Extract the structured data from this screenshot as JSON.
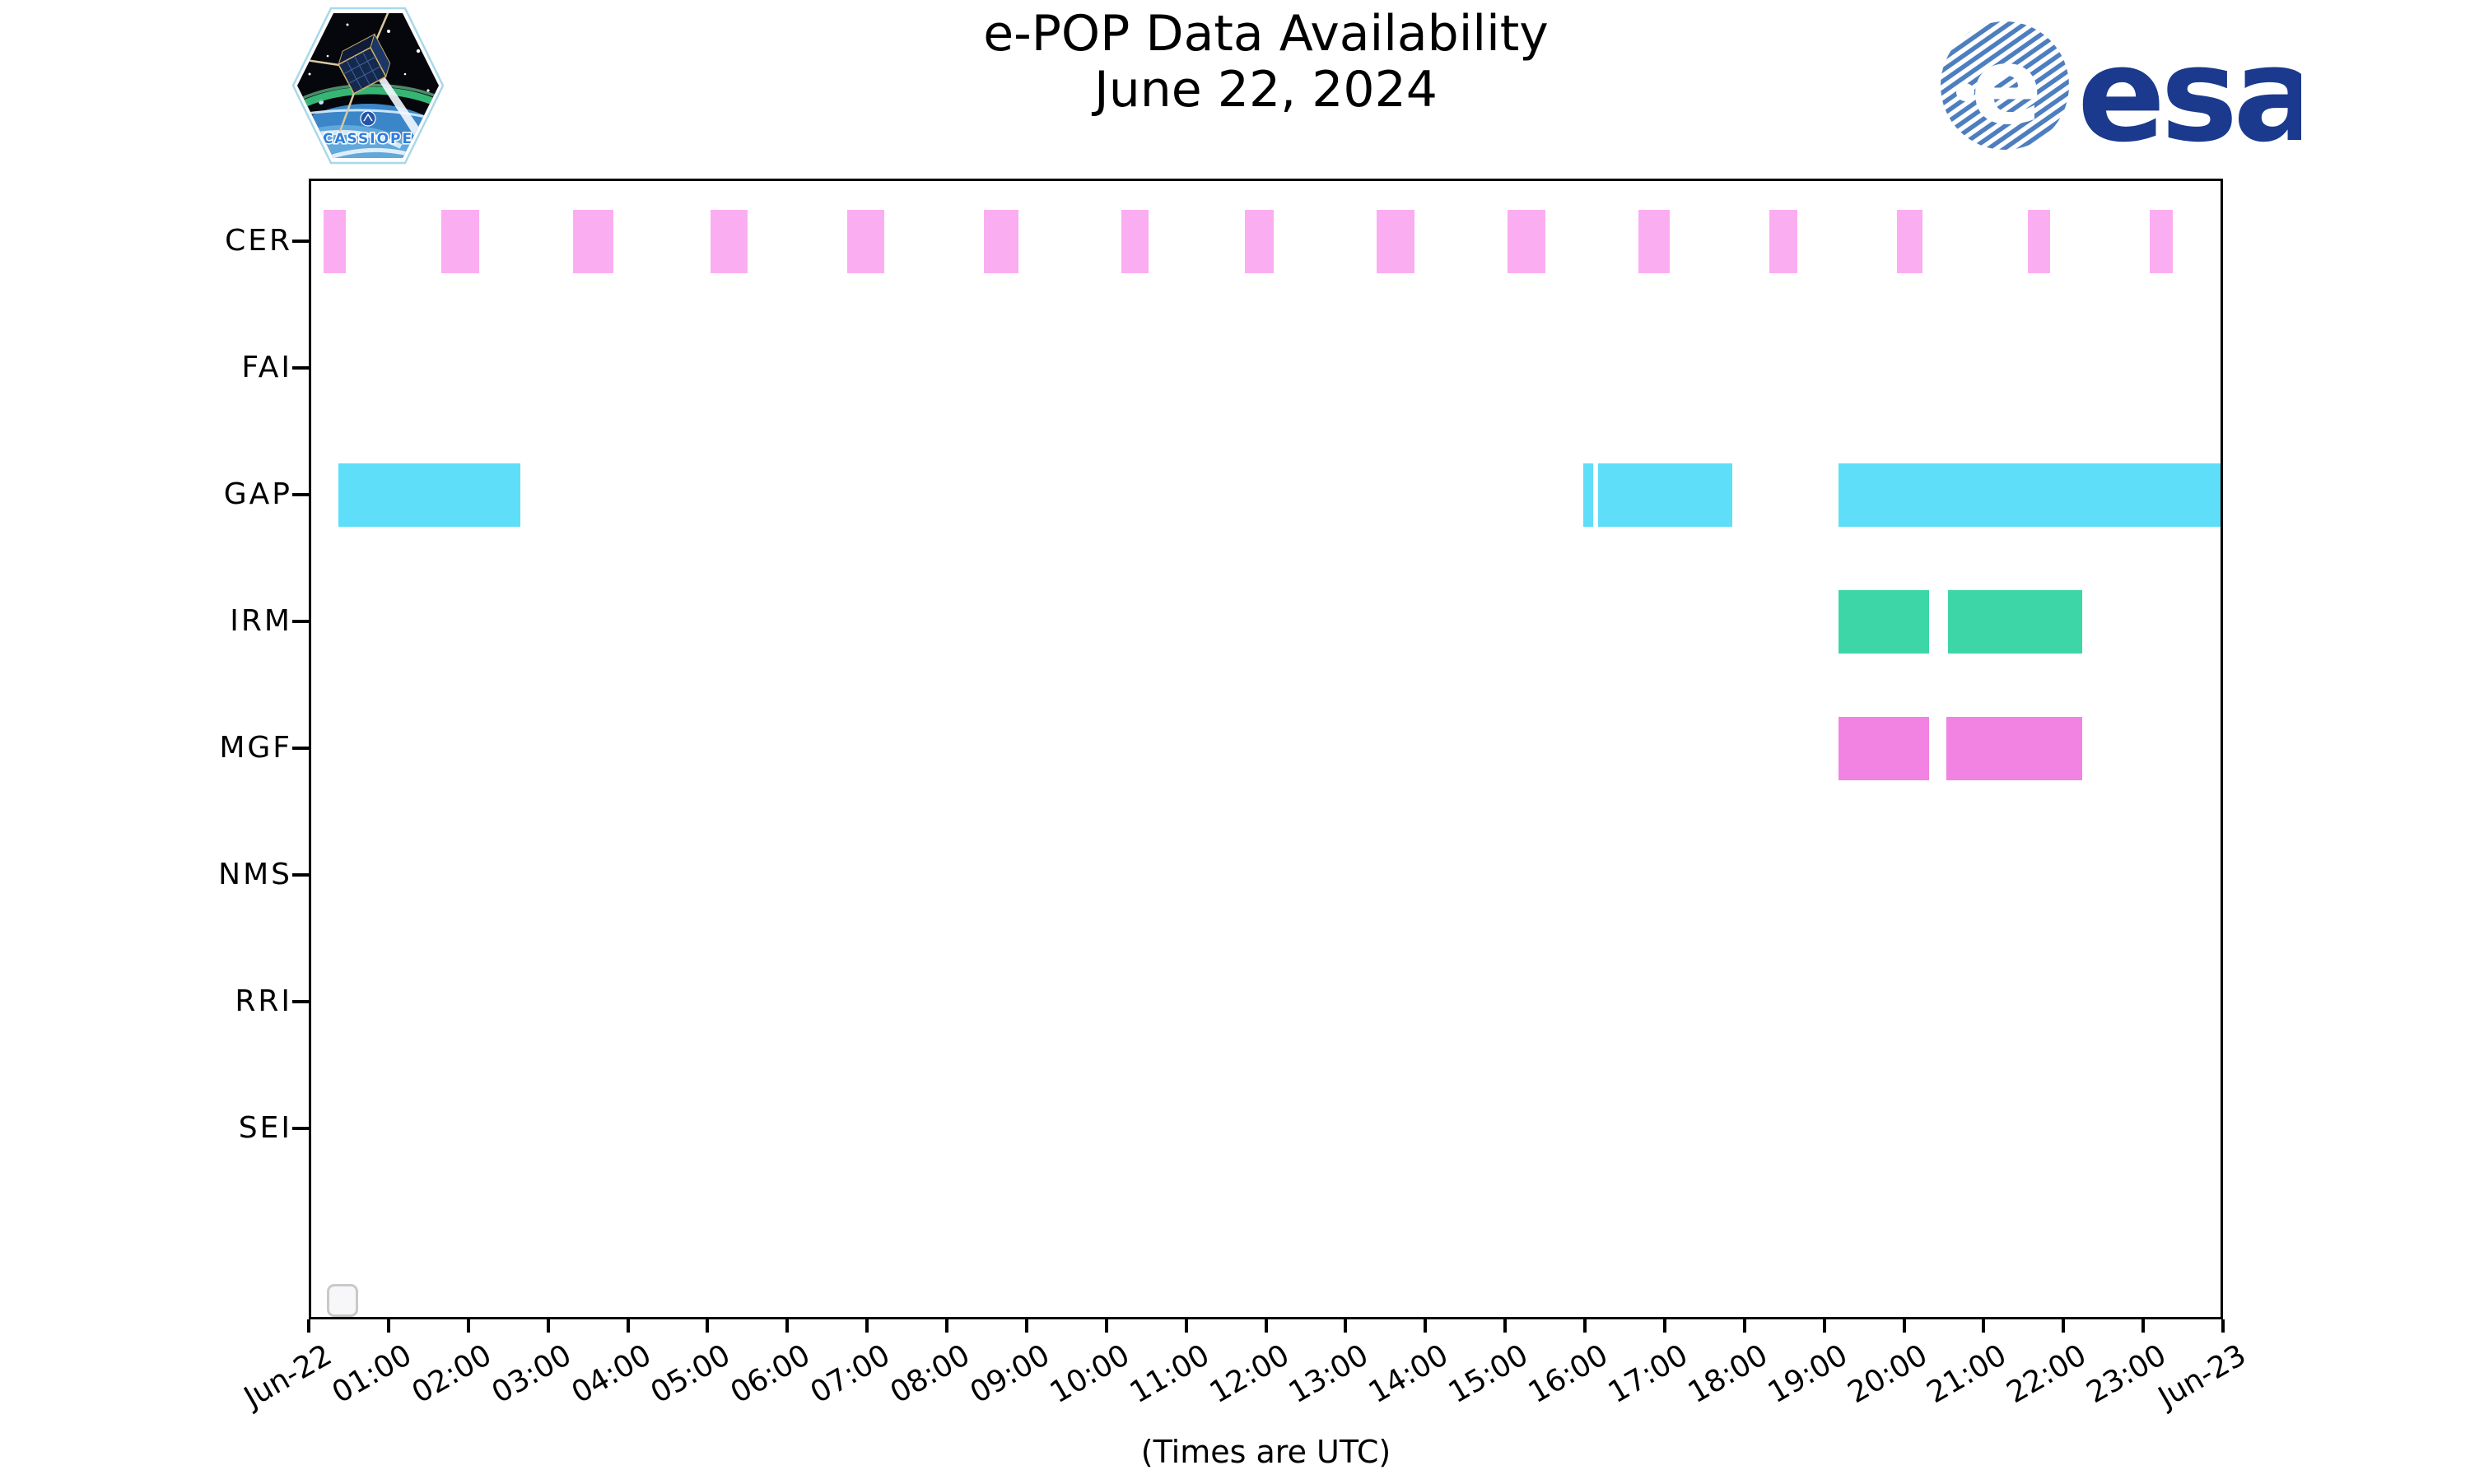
{
  "header": {
    "title_line1": "e-POP Data Availability",
    "title_line2": "June 22, 2024"
  },
  "logos": {
    "cassiope_patch_label": "CASSIOPE",
    "esa_wordmark": "esa",
    "esa_navy": "#1b3a8e",
    "esa_stripe_blue": "#4d7ec0"
  },
  "footer": {
    "caption": "(Times are UTC)"
  },
  "chart_data": {
    "type": "bar",
    "subtype": "gantt-availability-timeline",
    "title": "e-POP Data Availability June 22, 2024",
    "x_axis": {
      "caption": "(Times are UTC)",
      "span_hours": 24,
      "tick_labels": [
        "Jun-22",
        "01:00",
        "02:00",
        "03:00",
        "04:00",
        "05:00",
        "06:00",
        "07:00",
        "08:00",
        "09:00",
        "10:00",
        "11:00",
        "12:00",
        "13:00",
        "14:00",
        "15:00",
        "16:00",
        "17:00",
        "18:00",
        "19:00",
        "20:00",
        "21:00",
        "22:00",
        "23:00",
        "Jun-23"
      ]
    },
    "legend": {
      "visible": true,
      "entries": []
    },
    "rows": [
      {
        "label": "CER",
        "color": "#fbadf2",
        "segments": [
          [
            "00:11",
            "00:28"
          ],
          [
            "01:40",
            "02:08"
          ],
          [
            "03:19",
            "03:49"
          ],
          [
            "05:02",
            "05:30"
          ],
          [
            "06:45",
            "07:13"
          ],
          [
            "08:28",
            "08:54"
          ],
          [
            "10:11",
            "10:32"
          ],
          [
            "11:44",
            "12:06"
          ],
          [
            "13:23",
            "13:52"
          ],
          [
            "15:02",
            "15:30"
          ],
          [
            "16:40",
            "17:04"
          ],
          [
            "18:19",
            "18:40"
          ],
          [
            "19:55",
            "20:14"
          ],
          [
            "21:33",
            "21:50"
          ],
          [
            "23:05",
            "23:22"
          ]
        ]
      },
      {
        "label": "FAI",
        "color": "#fbadf2",
        "segments": []
      },
      {
        "label": "GAP",
        "color": "#5edef8",
        "segments": [
          [
            "00:22",
            "02:39"
          ],
          [
            "15:59",
            "16:06"
          ],
          [
            "16:10",
            "17:51"
          ],
          [
            "19:11",
            "24:00"
          ]
        ]
      },
      {
        "label": "IRM",
        "color": "#3dd6a7",
        "segments": [
          [
            "19:11",
            "20:19"
          ],
          [
            "20:33",
            "22:14"
          ]
        ]
      },
      {
        "label": "MGF",
        "color": "#f283e3",
        "segments": [
          [
            "19:11",
            "20:19"
          ],
          [
            "20:32",
            "22:14"
          ]
        ]
      },
      {
        "label": "NMS",
        "color": "#5edef8",
        "segments": []
      },
      {
        "label": "RRI",
        "color": "#5edef8",
        "segments": []
      },
      {
        "label": "SEI",
        "color": "#5edef8",
        "segments": []
      }
    ]
  }
}
